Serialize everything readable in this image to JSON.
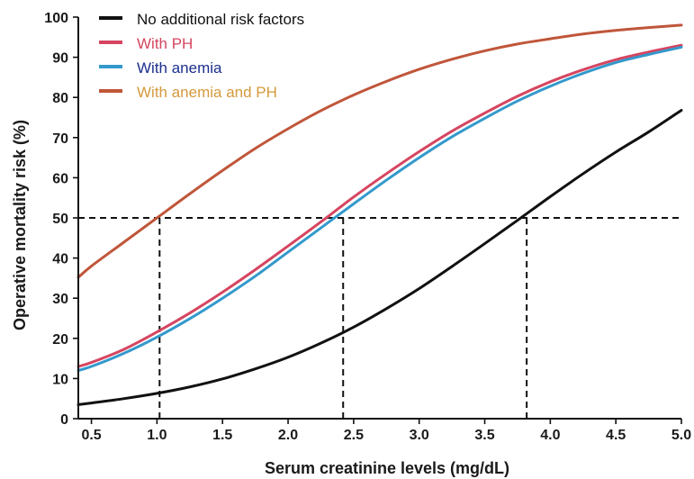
{
  "chart_data": {
    "type": "line",
    "title": "",
    "xlabel": "Serum creatinine levels (mg/dL)",
    "ylabel": "Operative mortality risk (%)",
    "xlim": [
      0.4,
      5.0
    ],
    "ylim": [
      0,
      100
    ],
    "x_ticks": [
      0.5,
      1.0,
      1.5,
      2.0,
      2.5,
      3.0,
      3.5,
      4.0,
      4.5,
      5.0
    ],
    "x_tick_labels": [
      "0.5",
      "1.0",
      "1.5",
      "2.0",
      "2.5",
      "3.0",
      "3.5",
      "4.0",
      "4.5",
      "5.0"
    ],
    "y_ticks": [
      0,
      10,
      20,
      30,
      40,
      50,
      60,
      70,
      80,
      90,
      100
    ],
    "y_tick_labels": [
      "0",
      "10",
      "20",
      "30",
      "40",
      "50",
      "60",
      "70",
      "80",
      "90",
      "100"
    ],
    "grid": false,
    "legend_position": "top-left",
    "series": [
      {
        "name": "No additional risk factors",
        "color": "#111111",
        "label_color": "#111111",
        "x": [
          0.4,
          0.5,
          0.75,
          1.0,
          1.25,
          1.5,
          1.75,
          2.0,
          2.25,
          2.5,
          2.75,
          3.0,
          3.25,
          3.5,
          3.75,
          4.0,
          4.25,
          4.5,
          4.75,
          5.0
        ],
        "y": [
          3.5,
          3.9,
          5.0,
          6.3,
          7.9,
          9.9,
          12.4,
          15.3,
          18.8,
          22.8,
          27.4,
          32.4,
          37.9,
          43.6,
          49.4,
          55.3,
          61.0,
          66.4,
          71.4,
          76.8
        ]
      },
      {
        "name": "With PH",
        "color": "#d64560",
        "label_color": "#d64560",
        "x": [
          0.4,
          0.5,
          0.75,
          1.0,
          1.25,
          1.5,
          1.75,
          2.0,
          2.25,
          2.5,
          2.75,
          3.0,
          3.25,
          3.5,
          3.75,
          4.0,
          4.25,
          4.5,
          4.75,
          5.0
        ],
        "y": [
          13.0,
          14.0,
          17.3,
          21.6,
          26.3,
          31.5,
          37.1,
          43.0,
          49.0,
          55.2,
          61.0,
          66.5,
          71.6,
          76.1,
          80.3,
          83.9,
          86.9,
          89.4,
          91.3,
          93.0
        ]
      },
      {
        "name": "With anemia",
        "color": "#3399cc",
        "label_color": "#1c2f8f",
        "x": [
          0.4,
          0.5,
          0.75,
          1.0,
          1.25,
          1.5,
          1.75,
          2.0,
          2.25,
          2.5,
          2.75,
          3.0,
          3.25,
          3.5,
          3.75,
          4.0,
          4.25,
          4.5,
          4.75,
          5.0
        ],
        "y": [
          12.0,
          13.0,
          16.3,
          20.3,
          24.9,
          30.0,
          35.5,
          41.5,
          47.5,
          53.5,
          59.4,
          65.0,
          70.2,
          74.8,
          79.1,
          82.8,
          86.0,
          88.7,
          90.7,
          92.5
        ]
      },
      {
        "name": "With anemia and PH",
        "color": "#c0563a",
        "label_color": "#d49a3c",
        "x": [
          0.4,
          0.5,
          0.75,
          1.0,
          1.25,
          1.5,
          1.75,
          2.0,
          2.25,
          2.5,
          2.75,
          3.0,
          3.25,
          3.5,
          3.75,
          4.0,
          4.25,
          4.5,
          4.75,
          5.0
        ],
        "y": [
          35.2,
          38.0,
          44.0,
          50.0,
          56.0,
          61.8,
          67.3,
          72.2,
          76.7,
          80.6,
          84.0,
          87.0,
          89.5,
          91.6,
          93.3,
          94.6,
          95.8,
          96.7,
          97.4,
          98.0
        ]
      }
    ],
    "reference_lines": {
      "y": 50,
      "x_drops": [
        1.02,
        2.42,
        3.82
      ],
      "color": "#111111",
      "style": "dashed"
    }
  }
}
